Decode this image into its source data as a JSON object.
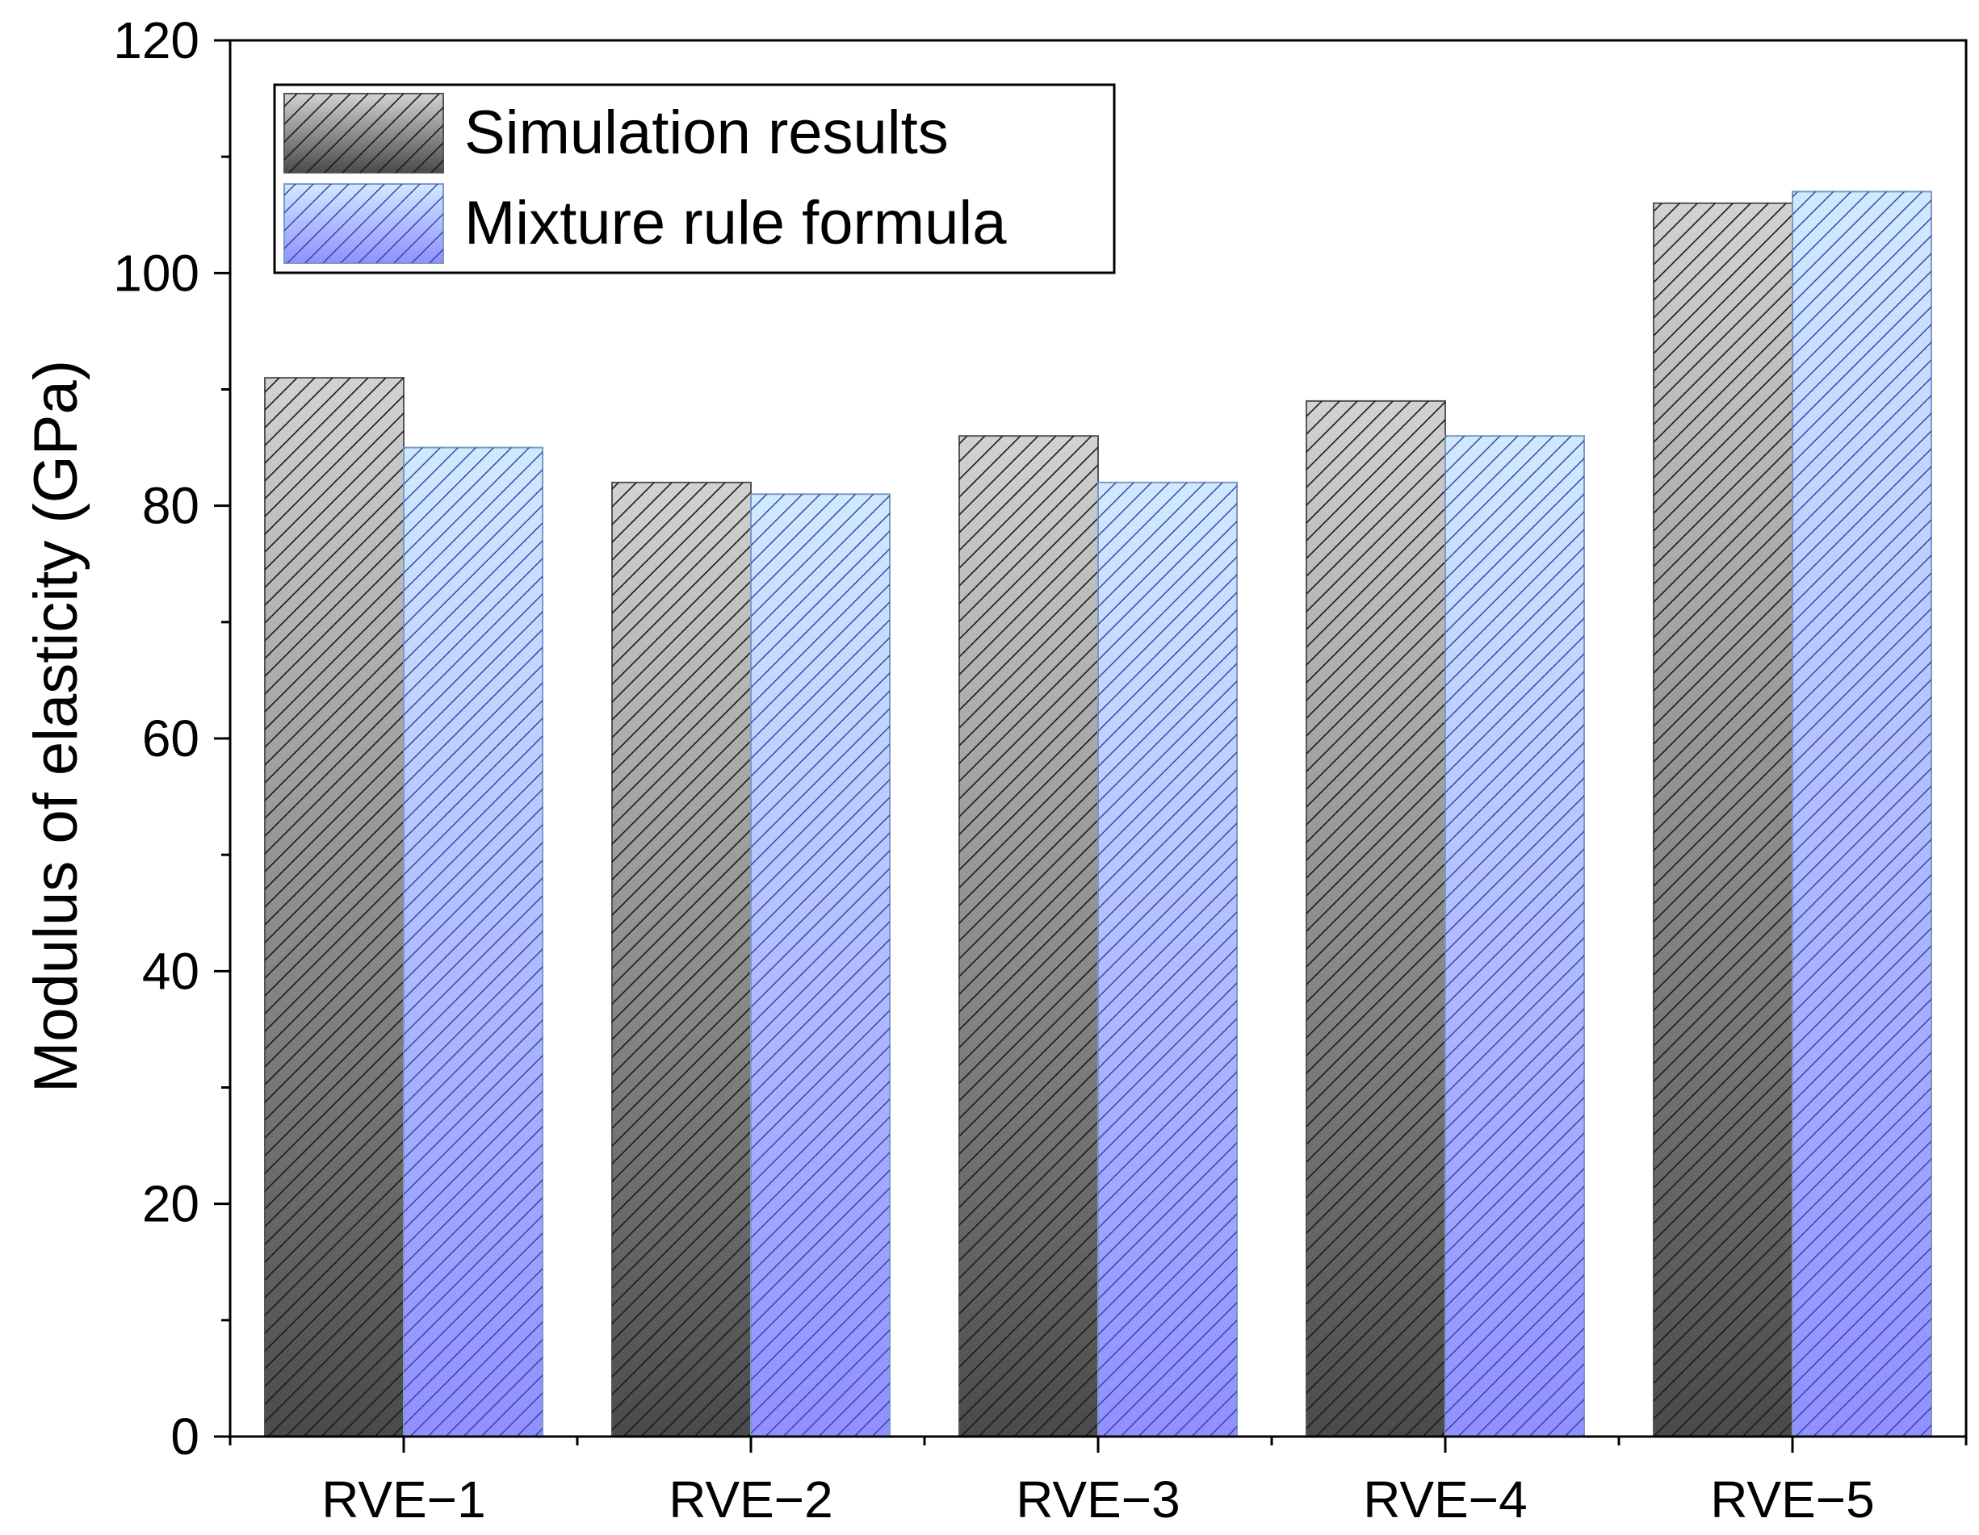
{
  "chart_data": {
    "type": "bar",
    "title": "",
    "xlabel": "",
    "ylabel": "Modulus of elasticity (GPa)",
    "categories": [
      "RVE−1",
      "RVE−2",
      "RVE−3",
      "RVE−4",
      "RVE−5"
    ],
    "series": [
      {
        "name": "Simulation results",
        "values": [
          91,
          82,
          86,
          89,
          106
        ]
      },
      {
        "name": "Mixture rule formula",
        "values": [
          85,
          81,
          82,
          86,
          107
        ]
      }
    ],
    "ylim": [
      0,
      120
    ],
    "yticks": [
      0,
      20,
      40,
      60,
      80,
      100,
      120
    ],
    "ytick_labels": [
      "0",
      "20",
      "40",
      "60",
      "80",
      "100",
      "120"
    ],
    "grid": false,
    "legend_position": "top-left"
  },
  "colors": {
    "simulation_top": "#d2d2d2",
    "simulation_bottom": "#4a4a4a",
    "mixture_top": "#cfeaff",
    "mixture_bottom": "#9090ff",
    "axis": "#000000"
  }
}
